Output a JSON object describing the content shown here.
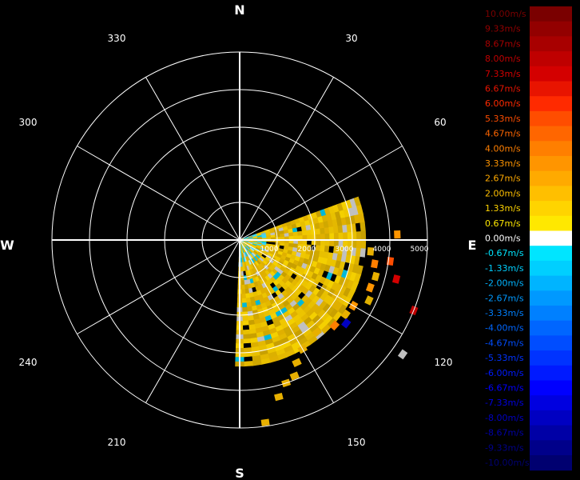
{
  "chart_data": {
    "type": "polar-radar",
    "title": "",
    "cardinals": {
      "N": "N",
      "E": "E",
      "S": "S",
      "W": "W"
    },
    "bearing_labels": [
      "30",
      "60",
      "120",
      "150",
      "210",
      "240",
      "300",
      "330"
    ],
    "range_labels": [
      "1000",
      "2000",
      "3000",
      "4000",
      "5000"
    ],
    "range_max": 5000,
    "sector": {
      "from_bearing_deg": 70,
      "to_bearing_deg": 180,
      "max_range": 3300
    },
    "colorbar": {
      "labels": [
        "10.00m/s",
        "9.33m/s",
        "8.67m/s",
        "8.00m/s",
        "7.33m/s",
        "6.67m/s",
        "6.00m/s",
        "5.33m/s",
        "4.67m/s",
        "4.00m/s",
        "3.33m/s",
        "2.67m/s",
        "2.00m/s",
        "1.33m/s",
        "0.67m/s",
        "0.00m/s",
        "-0.67m/s",
        "-1.33m/s",
        "-2.00m/s",
        "-2.67m/s",
        "-3.33m/s",
        "-4.00m/s",
        "-4.67m/s",
        "-5.33m/s",
        "-6.00m/s",
        "-6.67m/s",
        "-7.33m/s",
        "-8.00m/s",
        "-8.67m/s",
        "-9.33m/s",
        "-10.00m/s"
      ],
      "colors": [
        "#7a0000",
        "#930000",
        "#a80000",
        "#bf0000",
        "#d40000",
        "#e81400",
        "#ff2a00",
        "#ff4d00",
        "#ff6600",
        "#ff7f00",
        "#ff9500",
        "#ffaa00",
        "#ffbf00",
        "#ffd400",
        "#ffe800",
        "#ffffff",
        "#00e5ff",
        "#00cfff",
        "#00b4ff",
        "#0099ff",
        "#0080ff",
        "#0066ff",
        "#004dff",
        "#0033ff",
        "#001aff",
        "#0000ff",
        "#0000e0",
        "#0000c2",
        "#0000a6",
        "#00008a",
        "#000070"
      ]
    }
  }
}
